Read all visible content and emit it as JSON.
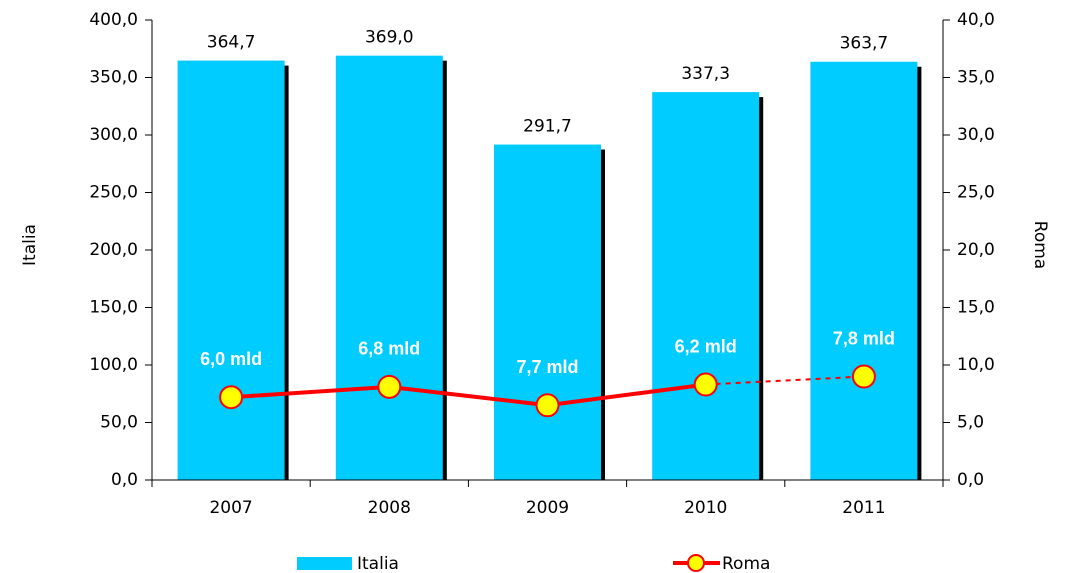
{
  "chart_data": {
    "type": "bar_line",
    "categories": [
      "2007",
      "2008",
      "2009",
      "2010",
      "2011"
    ],
    "series": [
      {
        "name": "Italia",
        "color": "#00ccff",
        "values": [
          364.7,
          369.0,
          291.7,
          337.3,
          363.7
        ],
        "value_labels": [
          "364,7",
          "369,0",
          "291,7",
          "337,3",
          "363,7"
        ]
      },
      {
        "name": "Roma",
        "color": "#ff0000",
        "marker_color": "#ffff00",
        "axis": "y2",
        "values": [
          7.2,
          8.1,
          6.5,
          8.3,
          9.0
        ],
        "dashed_last_segment": true
      }
    ],
    "annotations": [
      "6,0 mld",
      "6,8 mld",
      "7,7 mld",
      "6,2 mld",
      "7,8 mld"
    ],
    "ylabel": "Italia",
    "y2label": "Roma",
    "ylim": [
      0,
      400
    ],
    "yticks": [
      {
        "value": 0,
        "label": "0,0"
      },
      {
        "value": 50,
        "label": "50,0"
      },
      {
        "value": 100,
        "label": "100,0"
      },
      {
        "value": 150,
        "label": "150,0"
      },
      {
        "value": 200,
        "label": "200,0"
      },
      {
        "value": 250,
        "label": "250,0"
      },
      {
        "value": 300,
        "label": "300,0"
      },
      {
        "value": 350,
        "label": "350,0"
      },
      {
        "value": 400,
        "label": "400,0"
      }
    ],
    "y2lim": [
      0,
      40
    ],
    "y2ticks": [
      {
        "value": 0,
        "label": "0,0"
      },
      {
        "value": 5,
        "label": "5,0"
      },
      {
        "value": 10,
        "label": "10,0"
      },
      {
        "value": 15,
        "label": "15,0"
      },
      {
        "value": 20,
        "label": "20,0"
      },
      {
        "value": 25,
        "label": "25,0"
      },
      {
        "value": 30,
        "label": "30,0"
      },
      {
        "value": 35,
        "label": "35,0"
      },
      {
        "value": 40,
        "label": "40,0"
      }
    ],
    "legend": "bottom",
    "grid": false
  }
}
